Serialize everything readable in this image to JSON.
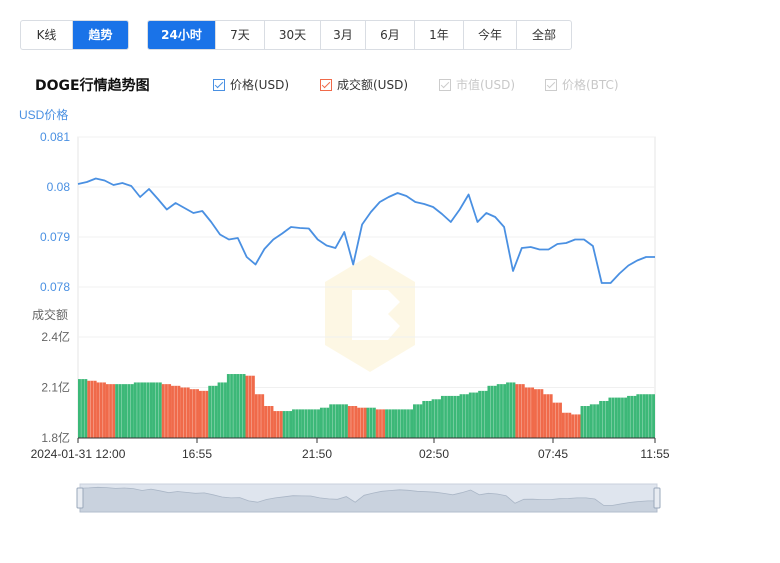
{
  "view_tabs": [
    {
      "label": "K线",
      "active": false
    },
    {
      "label": "趋势",
      "active": true
    }
  ],
  "range_tabs": [
    {
      "label": "24小时",
      "active": true
    },
    {
      "label": "7天",
      "active": false
    },
    {
      "label": "30天",
      "active": false
    },
    {
      "label": "3月",
      "active": false
    },
    {
      "label": "6月",
      "active": false
    },
    {
      "label": "1年",
      "active": false
    },
    {
      "label": "今年",
      "active": false
    },
    {
      "label": "全部",
      "active": false
    }
  ],
  "chart_title": "DOGE行情趋势图",
  "legend": [
    {
      "label": "价格(USD)",
      "checked": true,
      "color": "#4a90e2"
    },
    {
      "label": "成交额(USD)",
      "checked": true,
      "color": "#f06a4a"
    },
    {
      "label": "市值(USD)",
      "checked": false,
      "color": "#cccccc"
    },
    {
      "label": "价格(BTC)",
      "checked": false,
      "color": "#cccccc"
    }
  ],
  "chart_data": {
    "type": "line",
    "title": "DOGE行情趋势图",
    "price_axis_label": "USD价格",
    "price_ticks": [
      "0.081",
      "0.08",
      "0.079",
      "0.078"
    ],
    "price_range": [
      0.077,
      0.081
    ],
    "volume_axis_label": "成交额",
    "volume_ticks": [
      "2.4亿",
      "2.1亿",
      "1.8亿"
    ],
    "volume_range": [
      1.8,
      2.4
    ],
    "volume_unit": "亿",
    "x_ticks": [
      "2024-01-31 12:00",
      "16:55",
      "21:50",
      "02:50",
      "07:45",
      "11:55"
    ],
    "price_series": {
      "name": "价格(USD)",
      "color": "#4a90e2",
      "values": [
        0.08006,
        0.0801,
        0.08017,
        0.08013,
        0.08004,
        0.08008,
        0.08002,
        0.0798,
        0.07996,
        0.07976,
        0.07955,
        0.07968,
        0.07958,
        0.07948,
        0.07952,
        0.0793,
        0.07905,
        0.07895,
        0.07898,
        0.0786,
        0.07845,
        0.07876,
        0.07895,
        0.07907,
        0.0792,
        0.07918,
        0.07917,
        0.07895,
        0.07883,
        0.07878,
        0.0791,
        0.07845,
        0.07925,
        0.0795,
        0.0797,
        0.0798,
        0.07988,
        0.07982,
        0.0797,
        0.07966,
        0.0796,
        0.07946,
        0.0793,
        0.07955,
        0.07985,
        0.0793,
        0.07948,
        0.0794,
        0.0792,
        0.07832,
        0.07878,
        0.0788,
        0.07875,
        0.07875,
        0.07886,
        0.07888,
        0.07895,
        0.07895,
        0.07882,
        0.07808,
        0.07808,
        0.07827,
        0.07843,
        0.07853,
        0.0786,
        0.0786
      ],
      "x_index": "evenly spaced samples from 2024-01-31 12:00 to 11:55"
    },
    "volume_series": {
      "name": "成交额(USD)",
      "values_yi": [
        2.15,
        2.14,
        2.13,
        2.12,
        2.12,
        2.12,
        2.13,
        2.13,
        2.13,
        2.12,
        2.11,
        2.1,
        2.09,
        2.08,
        2.11,
        2.13,
        2.18,
        2.18,
        2.17,
        2.06,
        1.99,
        1.96,
        1.96,
        1.97,
        1.97,
        1.97,
        1.98,
        2.0,
        2.0,
        1.99,
        1.98,
        1.98,
        1.97,
        1.97,
        1.97,
        1.97,
        2.0,
        2.02,
        2.03,
        2.05,
        2.05,
        2.06,
        2.07,
        2.08,
        2.11,
        2.12,
        2.13,
        2.12,
        2.1,
        2.09,
        2.06,
        2.01,
        1.95,
        1.94,
        1.99,
        2.0,
        2.02,
        2.04,
        2.04,
        2.05,
        2.06,
        2.06
      ],
      "up_color": "#3cb878",
      "down_color": "#f06a4a"
    },
    "grid": true
  }
}
